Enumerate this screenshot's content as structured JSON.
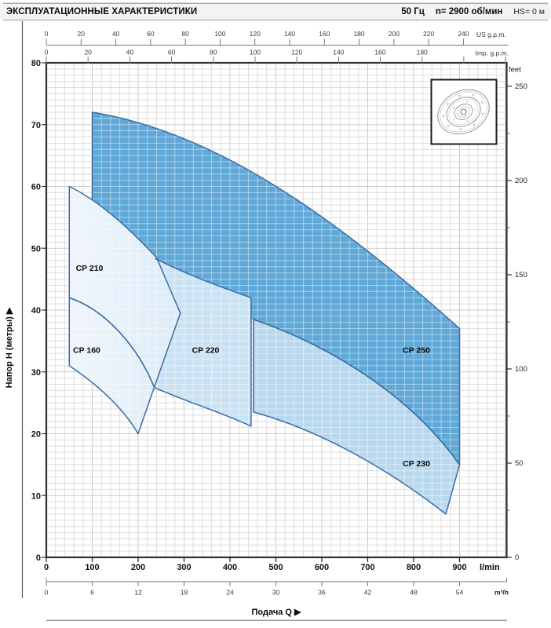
{
  "header": {
    "title": "ЭКСПЛУАТАЦИОННЫЕ ХАРАКТЕРИСТИКИ",
    "frequency": "50 Гц",
    "speed": "n= 2900 об/мин",
    "suction_head": "HS= 0 м"
  },
  "chart_data": {
    "type": "area",
    "title": "ЭКСПЛУАТАЦИОННЫЕ ХАРАКТЕРИСТИКИ",
    "grid": "on",
    "x_axis": {
      "title": "Подача Q",
      "arrow": "▶",
      "unit": "l/min",
      "min": 0,
      "max": 1003,
      "ticks": [
        0,
        100,
        200,
        300,
        400,
        500,
        600,
        700,
        800,
        900
      ]
    },
    "x_axis_us_gpm": {
      "unit": "US g.p.m.",
      "to_lmin": 3.785,
      "ticks": [
        0,
        20,
        40,
        60,
        80,
        100,
        120,
        140,
        160,
        180,
        200,
        220,
        240
      ]
    },
    "x_axis_imp_gpm": {
      "unit": "Imp. g.p.m.",
      "to_lmin": 4.546,
      "ticks": [
        0,
        20,
        40,
        60,
        80,
        100,
        120,
        140,
        160,
        180
      ],
      "unlabeled_ticks": [
        200,
        220
      ]
    },
    "x_axis_m3h": {
      "unit": "m³/h",
      "to_lmin": 16.667,
      "ticks": [
        0,
        6,
        12,
        18,
        24,
        30,
        36,
        42,
        48,
        54
      ]
    },
    "y_axis": {
      "title": "Напор Н (метры)",
      "arrow": "▶",
      "unit": "m",
      "min": 0,
      "max": 80,
      "ticks": [
        0,
        10,
        20,
        30,
        40,
        50,
        60,
        70,
        80
      ]
    },
    "y_axis_feet": {
      "unit": "feet",
      "to_m": 0.3048,
      "ticks": [
        0,
        50,
        100,
        150,
        200,
        250
      ],
      "minor_ticks": [
        25,
        75,
        125,
        175,
        225
      ]
    },
    "inset_drawing": "pump-impeller-flange",
    "colors": {
      "region_stroke": "#3a6da3",
      "cp250_fill": "#60a8d8",
      "cp230_fill": "#b9d8ee",
      "cp220_fill": "#cbe2f3",
      "light_fill_from": "#eff5fc",
      "light_fill_to": "#dcebf7",
      "grid_minor": "#dddddd",
      "grid_major": "#cbcbcb",
      "grid_on_fill": "rgba(255,255,255,0.45)",
      "frame": "#2f2f2f"
    },
    "regions": [
      {
        "name": "CP 250",
        "fill": "cp250",
        "label_q": 806,
        "label_h": 33.5,
        "fill_path": [
          [
            "M",
            100,
            72
          ],
          [
            "C",
            350,
            69,
            600,
            57,
            900,
            37
          ],
          [
            "L",
            900,
            15
          ],
          [
            "C",
            780,
            27.5,
            590,
            35,
            450,
            38.5
          ],
          [
            "L",
            100,
            48
          ],
          [
            "Z"
          ]
        ],
        "stroke_path": [
          [
            "M",
            100,
            58
          ],
          [
            "L",
            100,
            72
          ],
          [
            "C",
            350,
            69,
            600,
            57,
            900,
            37
          ],
          [
            "L",
            900,
            15
          ],
          [
            "C",
            780,
            27.5,
            590,
            35,
            450,
            38.5
          ]
        ]
      },
      {
        "name": "CP 230",
        "fill": "cp230",
        "label_q": 806,
        "label_h": 15.2,
        "fill_path": [
          [
            "M",
            451,
            38.5
          ],
          [
            "C",
            590,
            35,
            780,
            27.5,
            900,
            15
          ],
          [
            "L",
            870,
            7
          ],
          [
            "C",
            750,
            14,
            600,
            20.5,
            451,
            23.5
          ],
          [
            "Z"
          ]
        ],
        "stroke_path": [
          [
            "M",
            451,
            38.5
          ],
          [
            "C",
            590,
            35,
            780,
            27.5,
            900,
            15
          ],
          [
            "L",
            870,
            7
          ],
          [
            "C",
            750,
            14,
            600,
            20.5,
            451,
            23.5
          ],
          [
            "Z"
          ]
        ]
      },
      {
        "name": "CP 220",
        "fill": "cp220",
        "label_q": 347,
        "label_h": 33.5,
        "fill_path": [
          [
            "M",
            238,
            48.3
          ],
          [
            "C",
            310,
            45.6,
            385,
            43.6,
            446,
            42
          ],
          [
            "L",
            446,
            21.2
          ],
          [
            "C",
            380,
            23.5,
            300,
            25.3,
            235,
            27.5
          ],
          [
            "Z"
          ]
        ],
        "stroke_path": [
          [
            "M",
            238,
            48.3
          ],
          [
            "C",
            310,
            45.6,
            385,
            43.6,
            446,
            42
          ],
          [
            "L",
            446,
            21.2
          ],
          [
            "C",
            380,
            23.5,
            300,
            25.3,
            235,
            27.5
          ]
        ]
      },
      {
        "name": "CP 210",
        "fill": "light",
        "label_q": 94,
        "label_h": 46.8,
        "fill_path": [
          [
            "M",
            50,
            42
          ],
          [
            "L",
            50,
            60
          ],
          [
            "C",
            120,
            57.5,
            190,
            52.5,
            240,
            48.5
          ],
          [
            "L",
            292,
            39.5
          ],
          [
            "L",
            235,
            27.5
          ],
          [
            "C",
            200,
            34,
            130,
            40,
            50,
            42
          ],
          [
            "Z"
          ]
        ],
        "stroke_path": [
          [
            "M",
            50,
            42
          ],
          [
            "L",
            50,
            60
          ],
          [
            "C",
            120,
            57.5,
            190,
            52.5,
            240,
            48.5
          ],
          [
            "L",
            292,
            39.5
          ],
          [
            "L",
            235,
            27.5
          ],
          [
            "C",
            200,
            34,
            130,
            40,
            50,
            42
          ],
          [
            "Z"
          ]
        ]
      },
      {
        "name": "CP 160",
        "fill": "light",
        "label_q": 88,
        "label_h": 33.5,
        "fill_path": [
          [
            "M",
            50,
            31
          ],
          [
            "L",
            50,
            42
          ],
          [
            "C",
            130,
            40,
            200,
            34,
            235,
            27.5
          ],
          [
            "L",
            200,
            20
          ],
          [
            "C",
            170,
            23.8,
            120,
            27.5,
            50,
            31
          ],
          [
            "Z"
          ]
        ],
        "stroke_path": [
          [
            "M",
            50,
            31
          ],
          [
            "L",
            50,
            42
          ],
          [
            "C",
            130,
            40,
            200,
            34,
            235,
            27.5
          ],
          [
            "L",
            200,
            20
          ],
          [
            "C",
            170,
            23.8,
            120,
            27.5,
            50,
            31
          ],
          [
            "Z"
          ]
        ]
      }
    ]
  }
}
